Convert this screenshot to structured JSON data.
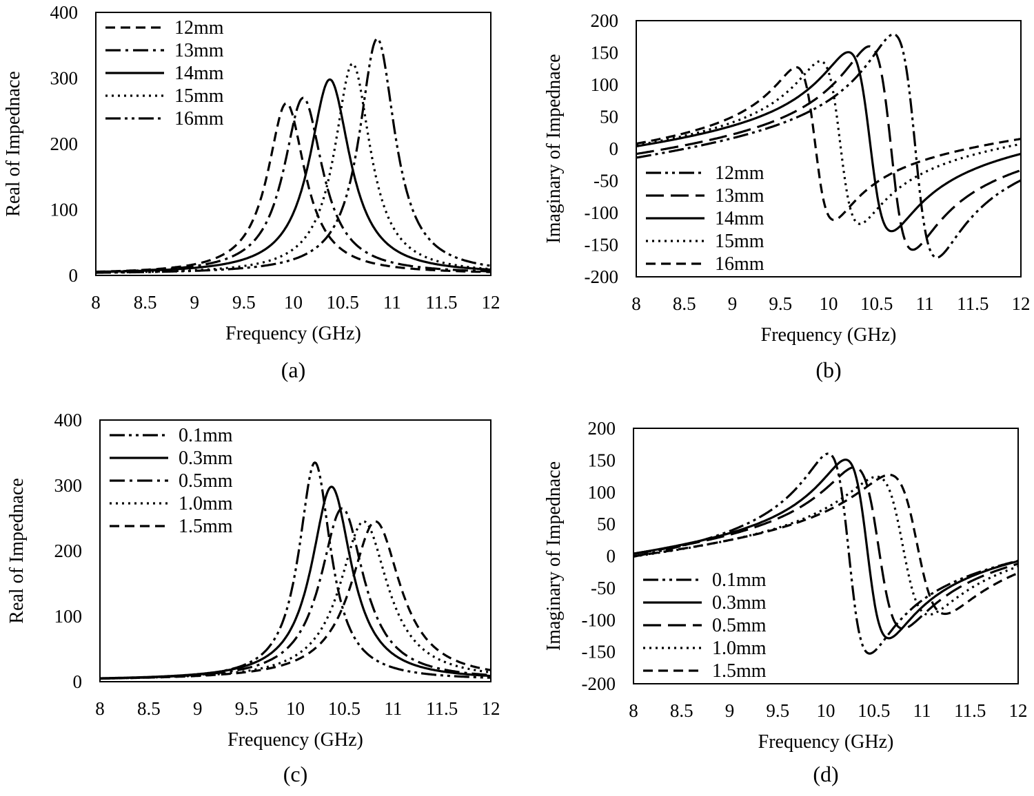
{
  "chart_data": [
    {
      "id": "a",
      "type": "line",
      "caption": "(a)",
      "xlabel": "Frequency (GHz)",
      "ylabel": "Real of Impednace",
      "xlim": [
        8,
        12
      ],
      "ylim": [
        0,
        400
      ],
      "xticks": [
        "8",
        "8.5",
        "9",
        "9.5",
        "10",
        "10.5",
        "11",
        "11.5",
        "12"
      ],
      "yticks": [
        "0",
        "100",
        "200",
        "300",
        "400"
      ],
      "legend_position": "top-left",
      "series": [
        {
          "name": "12mm",
          "dash": "dash",
          "model": "real",
          "f0": 9.93,
          "peak": 262,
          "w": 0.23,
          "base": 2
        },
        {
          "name": "13mm",
          "dash": "dashdot",
          "model": "real",
          "f0": 10.1,
          "peak": 270,
          "w": 0.24,
          "base": 2
        },
        {
          "name": "14mm",
          "dash": "solid",
          "model": "real",
          "f0": 10.37,
          "peak": 298,
          "w": 0.25,
          "base": 2
        },
        {
          "name": "15mm",
          "dash": "dot",
          "model": "real",
          "f0": 10.6,
          "peak": 322,
          "w": 0.22,
          "base": 2
        },
        {
          "name": "16mm",
          "dash": "dashdotdot",
          "model": "real",
          "f0": 10.85,
          "peak": 360,
          "w": 0.22,
          "base": 2
        }
      ]
    },
    {
      "id": "b",
      "type": "line",
      "caption": "(b)",
      "xlabel": "Frequency (GHz)",
      "ylabel": "Imaginary of Impednace",
      "xlim": [
        8,
        12
      ],
      "ylim": [
        -200,
        200
      ],
      "xticks": [
        "8",
        "8.5",
        "9",
        "9.5",
        "10",
        "10.5",
        "11",
        "11.5",
        "12"
      ],
      "yticks": [
        "-200",
        "-150",
        "-100",
        "-50",
        "0",
        "50",
        "100",
        "150",
        "200"
      ],
      "legend_position": "bottom-left",
      "series": [
        {
          "name": "12mm",
          "dash": "dashdotdot",
          "model": "imag",
          "f0": 10.9,
          "amp": 178,
          "w": 0.23,
          "off": -10,
          "s": 16
        },
        {
          "name": "13mm",
          "dash": "longdash",
          "model": "imag",
          "f0": 10.65,
          "amp": 162,
          "w": 0.23,
          "off": -8,
          "s": 14
        },
        {
          "name": "14mm",
          "dash": "solid",
          "model": "imag",
          "f0": 10.43,
          "amp": 143,
          "w": 0.23,
          "off": 5,
          "s": 14
        },
        {
          "name": "15mm",
          "dash": "dot",
          "model": "imag",
          "f0": 10.12,
          "amp": 130,
          "w": 0.21,
          "off": 8,
          "s": 14
        },
        {
          "name": "16mm",
          "dash": "dash",
          "model": "imag",
          "f0": 9.86,
          "amp": 122,
          "w": 0.2,
          "off": 10,
          "s": 14
        }
      ]
    },
    {
      "id": "c",
      "type": "line",
      "caption": "(c)",
      "xlabel": "Frequency (GHz)",
      "ylabel": "Real of Impednace",
      "xlim": [
        8,
        12
      ],
      "ylim": [
        0,
        400
      ],
      "xticks": [
        "8",
        "8.5",
        "9",
        "9.5",
        "10",
        "10.5",
        "11",
        "11.5",
        "12"
      ],
      "yticks": [
        "0",
        "100",
        "200",
        "300",
        "400"
      ],
      "legend_position": "top-left",
      "series": [
        {
          "name": "0.1mm",
          "dash": "dashdotdot",
          "model": "real",
          "f0": 10.2,
          "peak": 335,
          "w": 0.2,
          "base": 2
        },
        {
          "name": "0.3mm",
          "dash": "solid",
          "model": "real",
          "f0": 10.37,
          "peak": 298,
          "w": 0.25,
          "base": 2
        },
        {
          "name": "0.5mm",
          "dash": "dashdot",
          "model": "real",
          "f0": 10.48,
          "peak": 265,
          "w": 0.27,
          "base": 2
        },
        {
          "name": "1.0mm",
          "dash": "dot",
          "model": "real",
          "f0": 10.7,
          "peak": 245,
          "w": 0.3,
          "base": 2
        },
        {
          "name": "1.5mm",
          "dash": "dash",
          "model": "real",
          "f0": 10.82,
          "peak": 245,
          "w": 0.31,
          "base": 2
        }
      ]
    },
    {
      "id": "d",
      "type": "line",
      "caption": "(d)",
      "xlabel": "Frequency (GHz)",
      "ylabel": "Imaginary of Impednace",
      "xlim": [
        8,
        12
      ],
      "ylim": [
        -200,
        200
      ],
      "xticks": [
        "8",
        "8.5",
        "9",
        "9.5",
        "10",
        "10.5",
        "11",
        "11.5",
        "12"
      ],
      "yticks": [
        "-200",
        "-150",
        "-100",
        "-50",
        "0",
        "50",
        "100",
        "150",
        "200"
      ],
      "legend_position": "bottom-left",
      "series": [
        {
          "name": "0.1mm",
          "dash": "dashdotdot",
          "model": "imag",
          "f0": 10.24,
          "amp": 160,
          "w": 0.22,
          "off": 0,
          "s": 16
        },
        {
          "name": "0.3mm",
          "dash": "solid",
          "model": "imag",
          "f0": 10.43,
          "amp": 143,
          "w": 0.23,
          "off": 5,
          "s": 14
        },
        {
          "name": "0.5mm",
          "dash": "longdash",
          "model": "imag",
          "f0": 10.55,
          "amp": 130,
          "w": 0.26,
          "off": 5,
          "s": 14
        },
        {
          "name": "1.0mm",
          "dash": "dot",
          "model": "imag",
          "f0": 10.8,
          "amp": 112,
          "w": 0.28,
          "off": 5,
          "s": 14
        },
        {
          "name": "1.5mm",
          "dash": "dash",
          "model": "imag",
          "f0": 10.95,
          "amp": 113,
          "w": 0.3,
          "off": 5,
          "s": 14
        }
      ]
    }
  ]
}
